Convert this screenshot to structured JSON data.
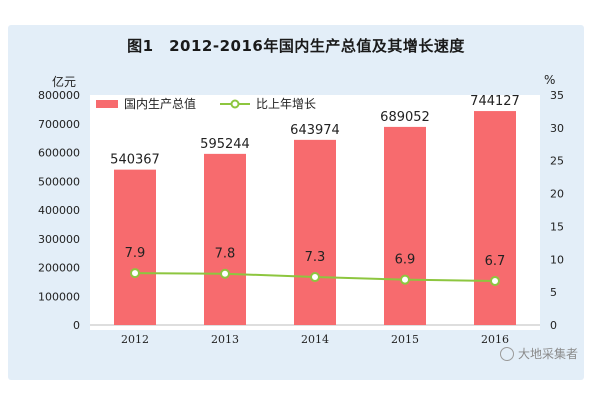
{
  "chart_data": {
    "type": "bar+line",
    "title": "图1　2012-2016年国内生产总值及其增长速度",
    "categories": [
      "2012",
      "2013",
      "2014",
      "2015",
      "2016"
    ],
    "series": [
      {
        "name": "国内生产总值",
        "type": "bar",
        "axis": "left",
        "color": "#f76b6e",
        "values": [
          540367,
          595244,
          643974,
          689052,
          744127
        ]
      },
      {
        "name": "比上年增长",
        "type": "line",
        "axis": "right",
        "color": "#8dc63f",
        "values": [
          7.9,
          7.8,
          7.3,
          6.9,
          6.7
        ]
      }
    ],
    "y_left": {
      "label": "亿元",
      "min": 0,
      "max": 800000,
      "ticks": [
        "800000",
        "700000",
        "600000",
        "500000",
        "400000",
        "300000",
        "200000",
        "100000",
        "0"
      ]
    },
    "y_right": {
      "label": "%",
      "min": 0,
      "max": 35,
      "ticks": [
        "35",
        "30",
        "25",
        "20",
        "15",
        "10",
        "5",
        "0"
      ]
    },
    "legend_position": "top-left",
    "grid": false
  },
  "watermark": "大地采集者"
}
